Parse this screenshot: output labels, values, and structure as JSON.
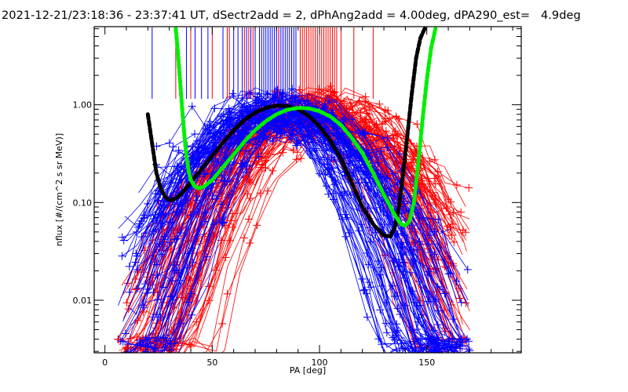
{
  "chart_data": {
    "type": "line",
    "title": "2021-12-21/23:18:36 - 23:37:41 UT, dSectr2add = 2, dPhAng2add = 4.00deg, dPA290_est=   4.9deg",
    "xlabel": "PA [deg]",
    "ylabel": "nflux [#/(cm^2 s sr MeV)]",
    "xlim": [
      -5,
      194
    ],
    "ylim": [
      0.0029,
      6.3
    ],
    "yscale": "log",
    "x_ticks": [
      {
        "value": 0,
        "label": "0"
      },
      {
        "value": 50,
        "label": "50"
      },
      {
        "value": 100,
        "label": "100"
      },
      {
        "value": 150,
        "label": "150"
      }
    ],
    "y_ticks": [
      {
        "value": 0.01,
        "label": "0.01"
      },
      {
        "value": 0.1,
        "label": "0.10"
      },
      {
        "value": 1.0,
        "label": "1.00"
      }
    ],
    "colors": {
      "series_a": "#ff0000",
      "series_b": "#0000ff",
      "fit_1": "#000000",
      "fit_2": "#00ee00",
      "axis": "#000000"
    },
    "fit_curves": [
      {
        "name": "fit-black",
        "color": "#000000",
        "x": [
          20,
          22,
          24,
          26,
          28,
          30,
          33,
          36,
          40,
          45,
          50,
          55,
          60,
          65,
          70,
          75,
          80,
          85,
          90,
          95,
          100,
          105,
          110,
          115,
          120,
          125,
          130,
          133,
          135,
          137,
          139,
          141,
          143,
          145,
          147,
          149
        ],
        "y": [
          0.8,
          0.4,
          0.2,
          0.14,
          0.115,
          0.105,
          0.11,
          0.125,
          0.16,
          0.22,
          0.3,
          0.41,
          0.55,
          0.7,
          0.83,
          0.93,
          0.98,
          0.97,
          0.9,
          0.77,
          0.6,
          0.43,
          0.28,
          0.16,
          0.09,
          0.06,
          0.046,
          0.045,
          0.055,
          0.09,
          0.2,
          0.5,
          1.3,
          3.0,
          4.8,
          6.0
        ]
      },
      {
        "name": "fit-green",
        "color": "#00ee00",
        "x": [
          33,
          34,
          35,
          36,
          37,
          38,
          39,
          40,
          42,
          44,
          46,
          50,
          55,
          60,
          65,
          70,
          75,
          80,
          85,
          90,
          95,
          100,
          105,
          110,
          115,
          120,
          125,
          130,
          135,
          138,
          140,
          142,
          144,
          146,
          148,
          150,
          152,
          154
        ],
        "y": [
          6.0,
          3.5,
          1.8,
          0.9,
          0.5,
          0.3,
          0.21,
          0.17,
          0.145,
          0.14,
          0.145,
          0.17,
          0.23,
          0.31,
          0.42,
          0.55,
          0.68,
          0.8,
          0.89,
          0.93,
          0.92,
          0.86,
          0.76,
          0.62,
          0.46,
          0.32,
          0.2,
          0.12,
          0.075,
          0.06,
          0.058,
          0.065,
          0.1,
          0.25,
          0.7,
          1.8,
          3.8,
          6.0
        ]
      }
    ],
    "traces": {
      "count_per_series": 90,
      "seed_a": 7,
      "seed_b": 13,
      "pa_samples": [
        9,
        17,
        25,
        33,
        41,
        49,
        57,
        65,
        73,
        81,
        89,
        97,
        105,
        113,
        121,
        129,
        137,
        145,
        153,
        161,
        168
      ],
      "peak_pa_range": [
        75,
        100
      ],
      "peak_flux_range": [
        0.6,
        1.1
      ],
      "width_range": [
        16,
        30
      ],
      "floor_flux": 0.003
    },
    "top_markers": {
      "series_b_pa": [
        22,
        38,
        42,
        45,
        48,
        55,
        60,
        62,
        64,
        66,
        68,
        70,
        72,
        73,
        74,
        75,
        76,
        77,
        78,
        79,
        80,
        81,
        82,
        83,
        84,
        85,
        86,
        87,
        88,
        89
      ],
      "series_a_pa": [
        33,
        40,
        50,
        57,
        58,
        65,
        67,
        69,
        81,
        91,
        92,
        93,
        94,
        95,
        96,
        97,
        98,
        99,
        100,
        101,
        102,
        103,
        104,
        105,
        106,
        107,
        108,
        110,
        116,
        125
      ],
      "lower_flux": 1.15
    }
  }
}
